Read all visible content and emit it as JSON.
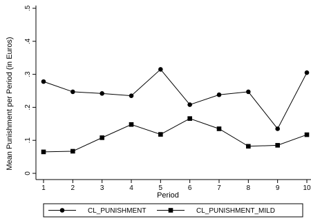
{
  "chart_data": {
    "type": "line",
    "title": "",
    "xlabel": "Period",
    "ylabel": "Mean Punishment per Period (in Euros)",
    "x": [
      1,
      2,
      3,
      4,
      5,
      6,
      7,
      8,
      9,
      10
    ],
    "x_ticks": [
      "1",
      "2",
      "3",
      "4",
      "5",
      "6",
      "7",
      "8",
      "9",
      "10"
    ],
    "ylim": [
      0,
      0.5
    ],
    "y_ticks": [
      0,
      0.1,
      0.2,
      0.3,
      0.4,
      0.5
    ],
    "y_tick_labels": [
      "0",
      ".1",
      ".2",
      ".3",
      ".4",
      ".5"
    ],
    "grid": false,
    "legend_position": "bottom",
    "series": [
      {
        "name": "CL_PUNISHMENT",
        "marker": "circle",
        "color": "#000000",
        "values": [
          0.278,
          0.247,
          0.242,
          0.235,
          0.315,
          0.208,
          0.238,
          0.247,
          0.135,
          0.305
        ]
      },
      {
        "name": "CL_PUNISHMENT_MILD",
        "marker": "square",
        "color": "#000000",
        "values": [
          0.065,
          0.067,
          0.108,
          0.148,
          0.118,
          0.166,
          0.135,
          0.082,
          0.085,
          0.117
        ]
      }
    ]
  }
}
